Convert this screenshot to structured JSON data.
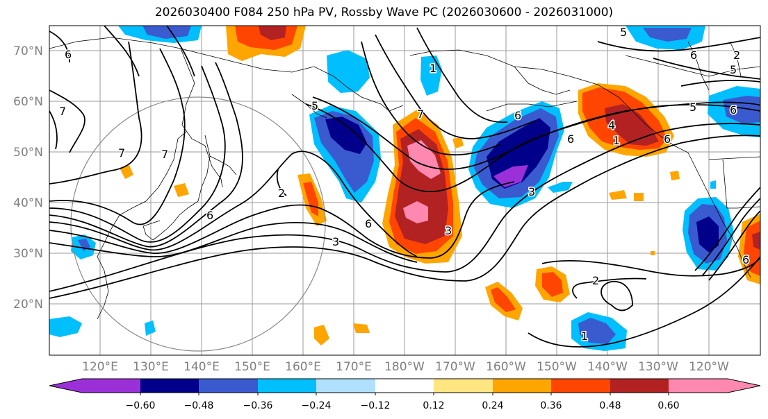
{
  "title": "2026030400 F084 250 hPa PV, Rossby Wave PC (2026030600 - 2026031000)",
  "map": {
    "lat_labels": [
      "70°N",
      "60°N",
      "50°N",
      "40°N",
      "30°N",
      "20°N"
    ],
    "lon_labels": [
      "120°E",
      "130°E",
      "140°E",
      "150°E",
      "160°E",
      "170°E",
      "180°W",
      "170°W",
      "160°W",
      "150°W",
      "140°W",
      "130°W",
      "120°W"
    ],
    "lat_range": [
      10,
      75
    ],
    "lon_range_east": [
      110,
      250
    ]
  },
  "contour_labels": [
    "2",
    "1",
    "6",
    "5",
    "7",
    "7",
    "7",
    "6",
    "2",
    "6",
    "3",
    "7",
    "6",
    "6",
    "5",
    "6",
    "6",
    "4",
    "1",
    "6",
    "3",
    "3",
    "5",
    "6",
    "5",
    "2",
    "1"
  ],
  "colorbar": {
    "tick_labels": [
      "−0.60",
      "−0.48",
      "−0.36",
      "−0.24",
      "−0.12",
      "0.12",
      "0.24",
      "0.36",
      "0.48",
      "0.60"
    ],
    "colors": [
      "#9b30d9",
      "#00008b",
      "#3a5bd0",
      "#00bfff",
      "#b0e0ff",
      "#ffffff",
      "#ffe680",
      "#ffa500",
      "#ff4500",
      "#b22222",
      "#ff88b0"
    ],
    "extend": "both"
  },
  "colors": {
    "contour": "#000000",
    "grid": "#9a9a9a",
    "axis_label": "#7f7f7f",
    "coastline": "#000000"
  }
}
